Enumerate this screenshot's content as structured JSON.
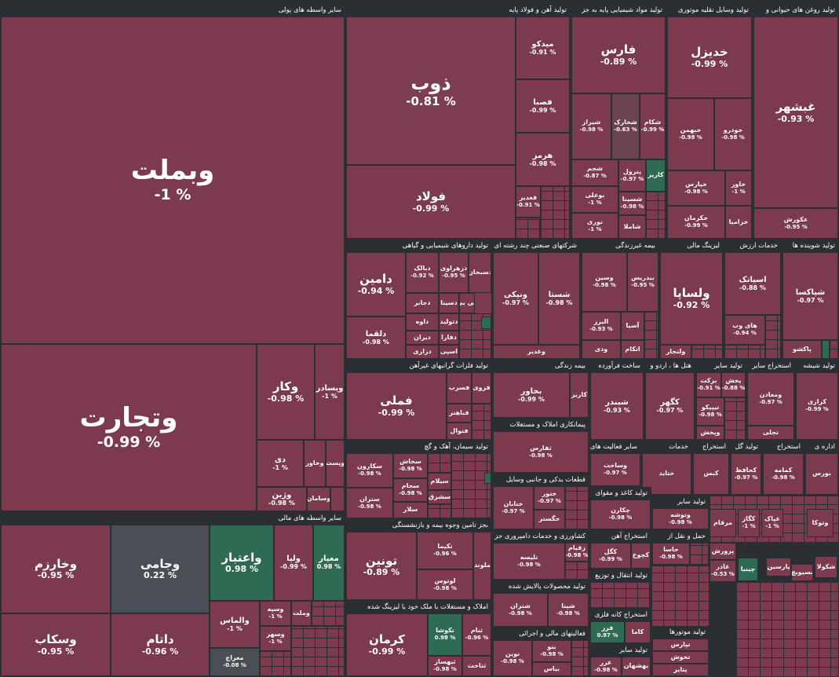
{
  "colors": {
    "negative": "#7b3a4d",
    "positive": "#2f6b52",
    "neutral": "#4a4f55",
    "background": "#2b2e33",
    "text": "#ffffff"
  },
  "sectors": {
    "s1": "سایر واسطه های پولی",
    "s2": "تولید آهن و فولاد پایه",
    "s3": "تولید مواد شیمیایی پایه به جز",
    "s4": "تولید وسایل نقلیه موتوری",
    "s5": "تولید روغن های حیوانی و",
    "s6": "تولید داروهای شیمیایی و گیاهی",
    "s7": "شرکتهای صنعتی چند رشته ای",
    "s8": "بیمه غیرزندگی",
    "s9": "لیزینگ مالی",
    "s10": "خدمات ارزش",
    "s11": "تولید شوینده ها",
    "s12": "تولید فلزات گرانبهای غیرآهن",
    "s13": "بیمه زندگی",
    "s14": "ساخت فرآورده",
    "s15": "هتل ها ، اردو و",
    "s16": "تولید سایر",
    "s17": "استخراج سایر",
    "s18": "تولید شیشه",
    "s19": "سایر واسطه های مالی",
    "s20": "تولید سیمان، آهک و گچ",
    "s21": "پیمانکاری املاک و مستغلات",
    "s22": "سایر فعالیت های",
    "s23": "خدمات",
    "s24": "استخراج",
    "s25": "تولید گل",
    "s26": "استخراج",
    "s27": "اداره ی",
    "s28": "بجز تامین وجوه بیمه و بازنشستگی",
    "s29": "قطعات یدکی و جانبی وسایل",
    "s30": "تولید کاغذ و مقوای",
    "s31": "تولید سایر",
    "s32": "استخراج آهن",
    "s33": "حمل و نقل از",
    "s34": "تولید انتقال و توزیع",
    "s35": "کشاورزی و خدمات دامپروری جز",
    "s36": "املاک و مستغلات با ملک خود یا لیزینگ شده",
    "s37": "تولید محصولات پالایش شده",
    "s38": "استخراج کانه فلزی",
    "s39": "فعالیتهای مالی و اجرائی",
    "s40": "تولید سایر",
    "s41": "تولید موتورها"
  },
  "tiles": {
    "vbmelat": {
      "sym": "وبملت",
      "chg": "% 1-"
    },
    "vtejarat": {
      "sym": "وتجارت",
      "chg": "% 0.99-"
    },
    "vkar": {
      "sym": "وکار",
      "chg": "% 0.98-"
    },
    "vpasdar": {
      "sym": "وپسادر",
      "chg": "% 1-"
    },
    "dey": {
      "sym": "دی",
      "chg": "% 1-"
    },
    "vkhavar": {
      "sym": "وخاور",
      "chg": ""
    },
    "vpost": {
      "sym": "وپست",
      "chg": ""
    },
    "vsaman": {
      "sym": "وسامان",
      "chg": ""
    },
    "vaten": {
      "sym": "وآتی",
      "chg": ""
    },
    "vzhin": {
      "sym": "وژین",
      "chg": "% 0.98-"
    },
    "zob": {
      "sym": "ذوب",
      "chg": "% 0.81-"
    },
    "foolad": {
      "sym": "فولاد",
      "chg": "% 0.99-"
    },
    "midko": {
      "sym": "میدکو",
      "chg": "% 0.91-"
    },
    "fasba": {
      "sym": "فصبا",
      "chg": "% 0.99-"
    },
    "hormoz": {
      "sym": "هرمز",
      "chg": "% 0.98-"
    },
    "fghadir": {
      "sym": "فغدیر",
      "chg": "% 0.91-"
    },
    "fars": {
      "sym": "فارس",
      "chg": "% 0.89-"
    },
    "shiraz": {
      "sym": "شیراز",
      "chg": "% 0.98-"
    },
    "shkhark": {
      "sym": "شخارک",
      "chg": "% 0.63-"
    },
    "shekam": {
      "sym": "شکام",
      "chg": "% 0.99-"
    },
    "shcham": {
      "sym": "شجم",
      "chg": "% 0.87-"
    },
    "shetrol": {
      "sym": "پترول",
      "chg": "% 0.97-"
    },
    "karis": {
      "sym": "کاریز",
      "chg": ""
    },
    "bouali": {
      "sym": "بوعلی",
      "chg": "% 1-"
    },
    "shsina": {
      "sym": "شسینا",
      "chg": "% 0.98-"
    },
    "nouri": {
      "sym": "نوری",
      "chg": "% 1-"
    },
    "shamla": {
      "sym": "شاملا",
      "chg": ""
    },
    "khodro": {
      "sym": "خدیزل",
      "chg": "% 0.99-"
    },
    "khbahman": {
      "sym": "خبهمن",
      "chg": "% 0.98-"
    },
    "khodrow": {
      "sym": "خودرو",
      "chg": "% 0.98-"
    },
    "kharas": {
      "sym": "خپارس",
      "chg": "% 0.98-"
    },
    "khavar": {
      "sym": "خاور",
      "chg": "% 1-"
    },
    "khakram": {
      "sym": "خکرمان",
      "chg": "% 0.99-"
    },
    "khazamia": {
      "sym": "خزامیا",
      "chg": ""
    },
    "ghshahr": {
      "sym": "غبشهر",
      "chg": "% 0.93-"
    },
    "akorosh": {
      "sym": "عکورش",
      "chg": "% 0.95-"
    },
    "damin": {
      "sym": "دامین",
      "chg": "% 0.94-"
    },
    "dbalk": {
      "sym": "دبالک",
      "chg": "% 0.92-"
    },
    "dzahravi": {
      "sym": "دزهراوی",
      "chg": "% 0.95-"
    },
    "dsobhan": {
      "sym": "دسبحان",
      "chg": ""
    },
    "djaber": {
      "sym": "دجابر",
      "chg": ""
    },
    "dsina": {
      "sym": "دسینا",
      "chg": ""
    },
    "dkobi": {
      "sym": "کی بی",
      "chg": ""
    },
    "dava": {
      "sym": "داوه",
      "chg": ""
    },
    "dlogman": {
      "sym": "دلقما",
      "chg": "% 0.98-"
    },
    "dtoliq": {
      "sym": "دتولید",
      "chg": ""
    },
    "dibiran": {
      "sym": "دیران",
      "chg": ""
    },
    "dfara": {
      "sym": "دفارا",
      "chg": ""
    },
    "dzarou": {
      "sym": "دزازی",
      "chg": ""
    },
    "dasbin": {
      "sym": "اسپی",
      "chg": ""
    },
    "vnikki": {
      "sym": "ونیکی",
      "chg": "% 0.97-"
    },
    "shasta": {
      "sym": "شستا",
      "chg": "% 0.98-"
    },
    "vghadir": {
      "sym": "وغدیر",
      "chg": ""
    },
    "vasmin": {
      "sym": "وسین",
      "chg": "% 0.98-"
    },
    "bidres": {
      "sym": "بیدریس",
      "chg": "% 0.95-"
    },
    "alborz": {
      "sym": "البرز",
      "chg": "% 0.93-"
    },
    "asia": {
      "sym": "آسیا",
      "chg": ""
    },
    "vdi": {
      "sym": "ودی",
      "chg": ""
    },
    "atkam": {
      "sym": "اتکام",
      "chg": ""
    },
    "vlsapa": {
      "sym": "ولساپا",
      "chg": "% 0.92-"
    },
    "vlbejat": {
      "sym": "ولتجار",
      "chg": ""
    },
    "asiatek": {
      "sym": "اسیاتک",
      "chg": "% 0.88-"
    },
    "hayweb": {
      "sym": "های وب",
      "chg": "% 0.94-"
    },
    "shpaksa": {
      "sym": "شپاکسا",
      "chg": "% 0.97-"
    },
    "pakosh": {
      "sym": "پاکشو",
      "chg": ""
    },
    "fameli": {
      "sym": "فملی",
      "chg": "% 0.99-"
    },
    "fsorb": {
      "sym": "فسرب",
      "chg": ""
    },
    "frozi": {
      "sym": "فروی",
      "chg": ""
    },
    "fnafiz": {
      "sym": "فباهنر",
      "chg": ""
    },
    "fjam": {
      "sym": "فنوال",
      "chg": ""
    },
    "fsazz": {
      "sym": "فسرز",
      "chg": ""
    },
    "bkhavar": {
      "sym": "بخاور",
      "chg": "% 0.99-"
    },
    "kariz": {
      "sym": "کاریز",
      "chg": ""
    },
    "shbandar": {
      "sym": "شبندر",
      "chg": "% 0.93-"
    },
    "kaser": {
      "sym": "کگهر",
      "chg": "% 0.97-"
    },
    "barkat": {
      "sym": "برکت",
      "chg": "% 0.91-"
    },
    "pakhsh": {
      "sym": "پخش",
      "chg": "% 0.88-"
    },
    "tipiko": {
      "sym": "تیپیکو",
      "chg": "% 0.98-"
    },
    "vapakhsh": {
      "sym": "وپخش",
      "chg": ""
    },
    "vmaadan": {
      "sym": "ومعادن",
      "chg": "% 0.97-"
    },
    "tajli": {
      "sym": "تجلی",
      "chg": ""
    },
    "karazi": {
      "sym": "کرازی",
      "chg": "% 0.99-"
    },
    "vkharazm": {
      "sym": "وخارزم",
      "chg": "% 0.95-"
    },
    "vjami": {
      "sym": "وجامی",
      "chg": "% 0.22"
    },
    "vetebar": {
      "sym": "واعتبار",
      "chg": "% 0.98"
    },
    "vlipa": {
      "sym": "ولپا",
      "chg": "% 0.99-"
    },
    "miyar": {
      "sym": "معیار",
      "chg": "% 0.98"
    },
    "vskab": {
      "sym": "وسکاب",
      "chg": "% 0.95-"
    },
    "datam": {
      "sym": "داتام",
      "chg": "% 0.96-"
    },
    "valmas": {
      "sym": "والماس",
      "chg": "% 1-"
    },
    "vsine": {
      "sym": "وسپه",
      "chg": "% 1-"
    },
    "vmolt": {
      "sym": "وملت",
      "chg": ""
    },
    "vmehr": {
      "sym": "وسهر",
      "chg": "% 1-"
    },
    "mearj": {
      "sym": "معراج",
      "chg": "% 0.08-"
    },
    "sekhash": {
      "sym": "سخاش",
      "chg": "% 0.98-"
    },
    "sakaron": {
      "sym": "سکارون",
      "chg": "% 0.98-"
    },
    "sejam": {
      "sym": "سجام",
      "chg": "% 0.98-"
    },
    "sfars": {
      "sym": "سیلام",
      "chg": ""
    },
    "sharq": {
      "sym": "سشرق",
      "chg": ""
    },
    "sestan": {
      "sym": "ستران",
      "chg": "% 0.98-"
    },
    "selar": {
      "sym": "سلار",
      "chg": ""
    },
    "tonin": {
      "sym": "تونین",
      "chg": "% 0.89-"
    },
    "tekima": {
      "sym": "تکیما",
      "chg": "% 0.96-"
    },
    "lotos": {
      "sym": "لوتوس",
      "chg": "% 0.98-"
    },
    "molood": {
      "sym": "ملوند",
      "chg": ""
    },
    "kerman": {
      "sym": "کرمان",
      "chg": "% 0.99-"
    },
    "tekosha": {
      "sym": "تکوشا",
      "chg": "% 0.98"
    },
    "tekam": {
      "sym": "ثنام",
      "chg": "% 0.96-"
    },
    "tahzar": {
      "sym": "ثتاخت",
      "chg": ""
    },
    "tbehsaz": {
      "sym": "ثبهساز",
      "chg": "% 0.98-"
    },
    "saferz": {
      "sym": "ثفارس",
      "chg": "% 0.98-"
    },
    "khanjan": {
      "sym": "خنابان",
      "chg": "% 0.97-"
    },
    "khtoor": {
      "sym": "ختور",
      "chg": "% 0.97-"
    },
    "khgostar": {
      "sym": "خگستر",
      "chg": ""
    },
    "vsakht": {
      "sym": "وساخت",
      "chg": "% 0.97-"
    },
    "hatida": {
      "sym": "حتاید",
      "chg": ""
    },
    "kabes": {
      "sym": "کبس",
      "chg": ""
    },
    "kehfat": {
      "sym": "کحافظ",
      "chg": "% 0.97-"
    },
    "kameh": {
      "sym": "کمامه",
      "chg": "% 0.98-"
    },
    "boors": {
      "sym": "بورس",
      "chg": ""
    },
    "chakaran": {
      "sym": "چکارن",
      "chg": "% 0.98-"
    },
    "vtoushe": {
      "sym": "وتوشه",
      "chg": "% 0.98-"
    },
    "maram": {
      "sym": "مرقام",
      "chg": ""
    },
    "kgaz": {
      "sym": "کگاز",
      "chg": "% 1-"
    },
    "ghbak": {
      "sym": "غپاک",
      "chg": "% 1-"
    },
    "vtoka": {
      "sym": "وتوکا",
      "chg": ""
    },
    "tleesah": {
      "sym": "تلیسه",
      "chg": "% 0.98-"
    },
    "zaram": {
      "sym": "زقیام",
      "chg": "% 0.98-"
    },
    "kagol": {
      "sym": "کگل",
      "chg": "% 0.99-"
    },
    "kchoukh": {
      "sym": "کچوخ",
      "chg": ""
    },
    "hama": {
      "sym": "حاسا",
      "chg": "% 0.98-"
    },
    "hakashti": {
      "sym": "حکشتی",
      "chg": ""
    },
    "purosh": {
      "sym": "پرورش",
      "chg": ""
    },
    "ghazar": {
      "sym": "غاذر",
      "chg": "% 0.53-"
    },
    "chinia": {
      "sym": "چینیا",
      "chg": ""
    },
    "parsin": {
      "sym": "پارسین",
      "chg": ""
    },
    "basimi": {
      "sym": "بسیویچ",
      "chg": ""
    },
    "shakola": {
      "sym": "شکولا",
      "chg": ""
    },
    "shetran": {
      "sym": "شتران",
      "chg": "% 0.98-"
    },
    "shpena": {
      "sym": "شپنا",
      "chg": "% 0.98-"
    },
    "famaz": {
      "sym": "فرز",
      "chg": "% 0.97"
    },
    "kama": {
      "sym": "کاما",
      "chg": ""
    },
    "noor": {
      "sym": "نوین",
      "chg": "% 0.98-"
    },
    "bino": {
      "sym": "بنو",
      "chg": "% 0.98-"
    },
    "bias": {
      "sym": "بیاس",
      "chg": ""
    },
    "ghazi": {
      "sym": "غزر",
      "chg": "% 0.98-"
    },
    "bahsan": {
      "sym": "بهشهان",
      "chg": ""
    },
    "tezaman": {
      "sym": "تپمز",
      "chg": ""
    },
    "tkhosh": {
      "sym": "تخوش",
      "chg": ""
    },
    "tpars": {
      "sym": "تپارس",
      "chg": ""
    },
    "piam": {
      "sym": "پتایر",
      "chg": ""
    },
    "vhatko": {
      "sym": "حتوکو",
      "chg": ""
    },
    "bmapna": {
      "sym": "بمپنا",
      "chg": ""
    },
    "nbtoor": {
      "sym": "نگستر نصف",
      "chg": ""
    }
  }
}
